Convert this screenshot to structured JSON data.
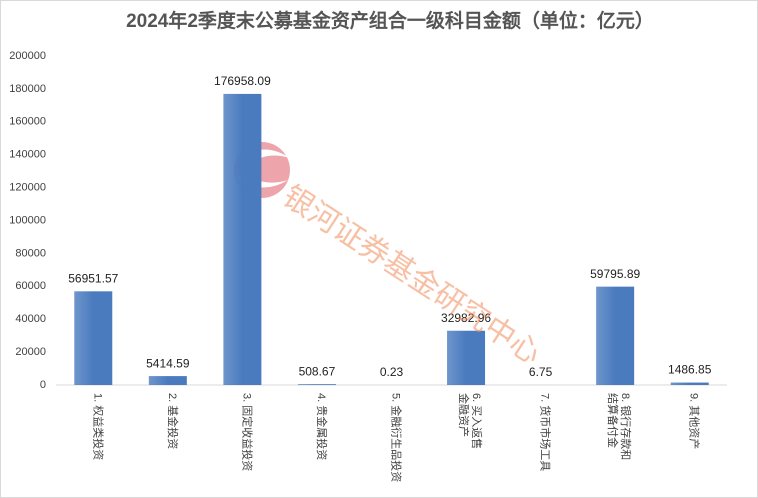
{
  "chart_data": {
    "type": "bar",
    "title": "2024年2季度末公募基金资产组合一级科目金额（单位：亿元）",
    "annotation": "银河证券基金研究中心",
    "categories": [
      "1. 权益类投资",
      "2. 基金投资",
      "3. 固定收益投资",
      "4. 贵金属投资",
      "5. 金融衍生品投资",
      "6. 买入返售金融资产",
      "7. 货币市场工具",
      "8. 银行存款和结算备付金",
      "9. 其他资产"
    ],
    "values": [
      56951.57,
      5414.59,
      176958.09,
      508.67,
      0.23,
      32982.96,
      6.75,
      59795.89,
      1486.85
    ],
    "color": "#4a7bbf",
    "ylim": [
      0,
      200000
    ],
    "yticks": [
      0,
      20000,
      40000,
      60000,
      80000,
      100000,
      120000,
      140000,
      160000,
      180000,
      200000
    ],
    "grid": false
  }
}
